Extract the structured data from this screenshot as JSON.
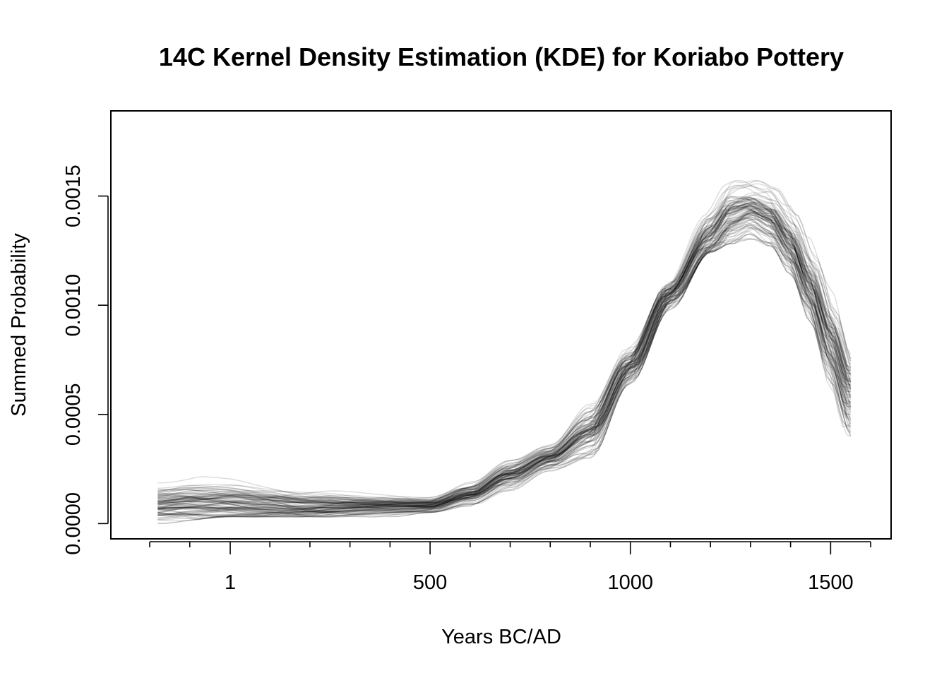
{
  "chart_data": {
    "type": "line",
    "title": "14C Kernel Density Estimation (KDE) for Koriabo Pottery",
    "xlabel": "Years BC/AD",
    "ylabel": "Summed Probability",
    "xlim": [
      -297,
      1651
    ],
    "ylim": [
      -7e-05,
      0.00189
    ],
    "x_ticks": [
      1,
      500,
      1000,
      1500
    ],
    "x_tick_labels": [
      "1",
      "500",
      "1000",
      "1500"
    ],
    "x_minor_ticks": [
      -200,
      -100,
      100,
      200,
      300,
      400,
      600,
      700,
      800,
      900,
      1100,
      1200,
      1300,
      1400,
      1600
    ],
    "y_ticks": [
      0,
      0.0005,
      0.001,
      0.0015
    ],
    "y_tick_labels": [
      "0.0000",
      "0.0005",
      "0.0010",
      "0.0015"
    ],
    "grid": false,
    "legend": "none",
    "line_color": "#000000",
    "line_opacity": 0.14,
    "series_count": 100,
    "x_range_data": [
      -180,
      1550
    ],
    "mean_curve": {
      "x": [
        -180,
        -100,
        0,
        100,
        200,
        300,
        400,
        500,
        600,
        700,
        800,
        900,
        1000,
        1100,
        1200,
        1250,
        1300,
        1350,
        1400,
        1450,
        1500,
        1550
      ],
      "y": [
        9e-05,
        0.0001,
        0.0001,
        9e-05,
        8e-05,
        8e-05,
        8e-05,
        8e-05,
        0.00013,
        0.00022,
        0.0003,
        0.00042,
        0.00072,
        0.00105,
        0.00131,
        0.00141,
        0.00144,
        0.0014,
        0.00128,
        0.00108,
        0.00083,
        0.00058
      ]
    },
    "envelope": {
      "x": [
        -180,
        0,
        200,
        400,
        500,
        600,
        700,
        800,
        900,
        1000,
        1100,
        1200,
        1250,
        1300,
        1350,
        1400,
        1450,
        1500,
        1550
      ],
      "lower": [
        0.0,
        3e-05,
        3e-05,
        3e-05,
        5e-05,
        8e-05,
        0.00015,
        0.00024,
        0.0003,
        0.00064,
        0.00098,
        0.00124,
        0.00128,
        0.0013,
        0.00127,
        0.00114,
        0.00092,
        0.00062,
        0.00029
      ],
      "upper": [
        0.00019,
        0.00023,
        0.00019,
        0.00014,
        0.00014,
        0.00019,
        0.00029,
        0.00036,
        0.00055,
        0.00082,
        0.00112,
        0.00153,
        0.00164,
        0.0016,
        0.0016,
        0.0015,
        0.00132,
        0.00108,
        0.00078
      ]
    }
  }
}
